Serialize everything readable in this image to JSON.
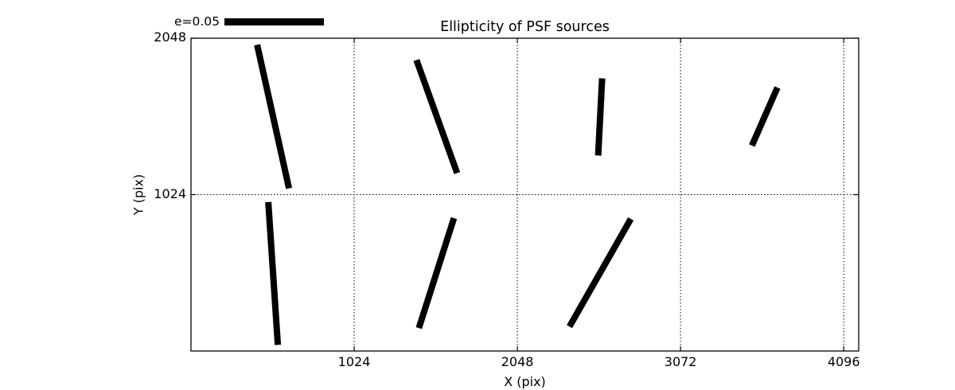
{
  "figure": {
    "background": "#ffffff",
    "ink_color": "#000000"
  },
  "chart_data": {
    "type": "line",
    "subtype": "psf-ellipticity-whisker-plot",
    "title": "Ellipticity of PSF sources",
    "xlabel": "X (pix)",
    "ylabel": "Y (pix)",
    "xlim": [
      0,
      4190
    ],
    "ylim": [
      0,
      2048
    ],
    "x_ticks": [
      1024,
      2048,
      3072,
      4096
    ],
    "y_ticks": [
      1024,
      2048
    ],
    "grid": "dotted",
    "legend": {
      "label": "e=0.05",
      "position": "upper-left-above-axes"
    },
    "whiskers": [
      {
        "x1": 415,
        "y1": 2005,
        "x2": 615,
        "y2": 1065
      },
      {
        "x1": 1415,
        "y1": 1905,
        "x2": 1670,
        "y2": 1165
      },
      {
        "x1": 2580,
        "y1": 1785,
        "x2": 2555,
        "y2": 1280
      },
      {
        "x1": 3520,
        "y1": 1345,
        "x2": 3680,
        "y2": 1725
      },
      {
        "x1": 485,
        "y1": 975,
        "x2": 545,
        "y2": 40
      },
      {
        "x1": 1430,
        "y1": 150,
        "x2": 1650,
        "y2": 870
      },
      {
        "x1": 2375,
        "y1": 160,
        "x2": 2760,
        "y2": 865
      }
    ]
  }
}
